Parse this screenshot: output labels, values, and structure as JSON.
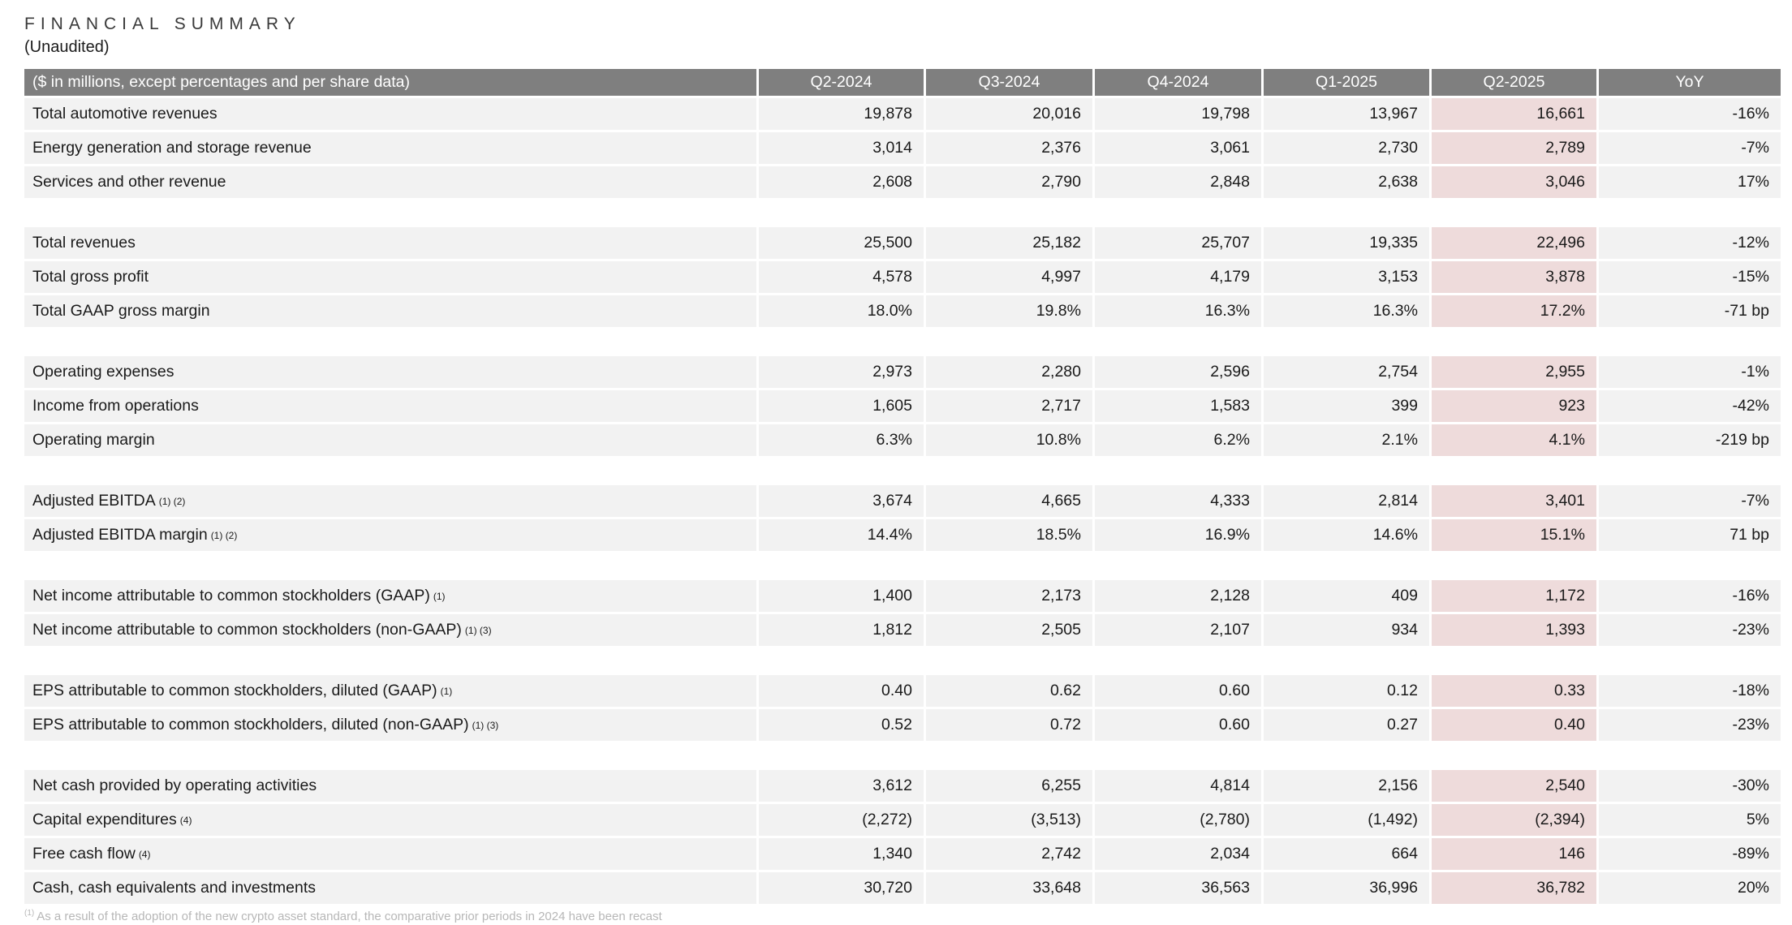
{
  "page": {
    "title": "FINANCIAL SUMMARY",
    "subtitle": "(Unaudited)"
  },
  "table": {
    "unit_label": "($ in millions, except percentages and per share data)",
    "columns": [
      "Q2-2024",
      "Q3-2024",
      "Q4-2024",
      "Q1-2025",
      "Q2-2025",
      "YoY"
    ],
    "highlight_column": "Q2-2025",
    "colors": {
      "header_bg": "#7f7f7f",
      "header_text": "#ffffff",
      "row_bg": "#f2f2f2",
      "highlight_bg": "#eedbdb"
    },
    "groups": [
      {
        "rows": [
          {
            "label": "Total automotive revenues",
            "sup": "",
            "values": [
              "19,878",
              "20,016",
              "19,798",
              "13,967",
              "16,661",
              "-16%"
            ]
          },
          {
            "label": "Energy generation and storage revenue",
            "sup": "",
            "values": [
              "3,014",
              "2,376",
              "3,061",
              "2,730",
              "2,789",
              "-7%"
            ]
          },
          {
            "label": "Services and other revenue",
            "sup": "",
            "values": [
              "2,608",
              "2,790",
              "2,848",
              "2,638",
              "3,046",
              "17%"
            ]
          }
        ]
      },
      {
        "rows": [
          {
            "label": "Total revenues",
            "sup": "",
            "values": [
              "25,500",
              "25,182",
              "25,707",
              "19,335",
              "22,496",
              "-12%"
            ]
          },
          {
            "label": "Total gross profit",
            "sup": "",
            "values": [
              "4,578",
              "4,997",
              "4,179",
              "3,153",
              "3,878",
              "-15%"
            ]
          },
          {
            "label": "Total GAAP gross margin",
            "sup": "",
            "values": [
              "18.0%",
              "19.8%",
              "16.3%",
              "16.3%",
              "17.2%",
              "-71 bp"
            ]
          }
        ]
      },
      {
        "rows": [
          {
            "label": "Operating expenses",
            "sup": "",
            "values": [
              "2,973",
              "2,280",
              "2,596",
              "2,754",
              "2,955",
              "-1%"
            ]
          },
          {
            "label": "Income from operations",
            "sup": "",
            "values": [
              "1,605",
              "2,717",
              "1,583",
              "399",
              "923",
              "-42%"
            ]
          },
          {
            "label": "Operating margin",
            "sup": "",
            "values": [
              "6.3%",
              "10.8%",
              "6.2%",
              "2.1%",
              "4.1%",
              "-219 bp"
            ]
          }
        ]
      },
      {
        "rows": [
          {
            "label": "Adjusted EBITDA",
            "sup": "(1) (2)",
            "values": [
              "3,674",
              "4,665",
              "4,333",
              "2,814",
              "3,401",
              "-7%"
            ]
          },
          {
            "label": "Adjusted EBITDA margin",
            "sup": "(1) (2)",
            "values": [
              "14.4%",
              "18.5%",
              "16.9%",
              "14.6%",
              "15.1%",
              "71 bp"
            ]
          }
        ]
      },
      {
        "rows": [
          {
            "label": "Net income attributable to common stockholders (GAAP)",
            "sup": "(1)",
            "values": [
              "1,400",
              "2,173",
              "2,128",
              "409",
              "1,172",
              "-16%"
            ]
          },
          {
            "label": "Net income attributable to common stockholders (non-GAAP)",
            "sup": "(1) (3)",
            "values": [
              "1,812",
              "2,505",
              "2,107",
              "934",
              "1,393",
              "-23%"
            ]
          }
        ]
      },
      {
        "rows": [
          {
            "label": "EPS attributable to common stockholders, diluted (GAAP)",
            "sup": "(1)",
            "values": [
              "0.40",
              "0.62",
              "0.60",
              "0.12",
              "0.33",
              "-18%"
            ]
          },
          {
            "label": "EPS attributable to common stockholders, diluted (non-GAAP)",
            "sup": "(1) (3)",
            "values": [
              "0.52",
              "0.72",
              "0.60",
              "0.27",
              "0.40",
              "-23%"
            ]
          }
        ]
      },
      {
        "rows": [
          {
            "label": "Net cash provided by operating activities",
            "sup": "",
            "values": [
              "3,612",
              "6,255",
              "4,814",
              "2,156",
              "2,540",
              "-30%"
            ]
          },
          {
            "label": "Capital expenditures",
            "sup": "(4)",
            "values": [
              "(2,272)",
              "(3,513)",
              "(2,780)",
              "(1,492)",
              "(2,394)",
              "5%"
            ]
          },
          {
            "label": "Free cash flow",
            "sup": "(4)",
            "values": [
              "1,340",
              "2,742",
              "2,034",
              "664",
              "146",
              "-89%"
            ]
          },
          {
            "label": "Cash, cash equivalents and investments",
            "sup": "",
            "values": [
              "30,720",
              "33,648",
              "36,563",
              "36,996",
              "36,782",
              "20%"
            ]
          }
        ]
      }
    ],
    "footnote": {
      "marker": "(1)",
      "text": "As a result of the adoption of the new crypto asset standard, the comparative prior periods in 2024 have been recast"
    }
  }
}
